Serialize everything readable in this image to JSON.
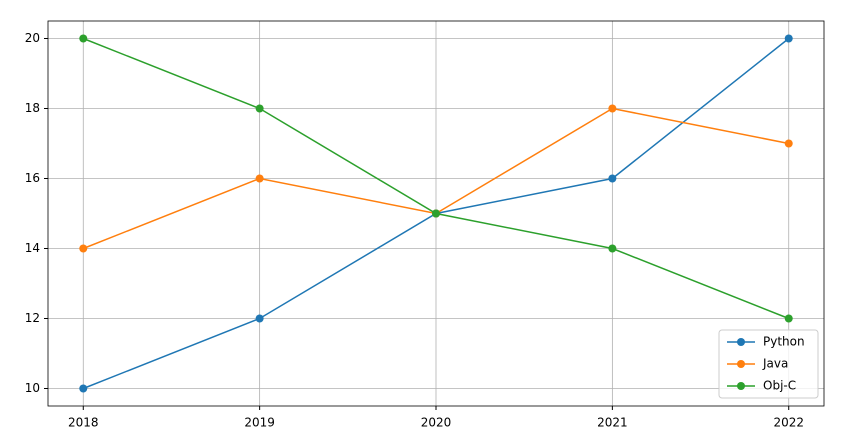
{
  "chart_data": {
    "type": "line",
    "x": [
      2018,
      2019,
      2020,
      2021,
      2022
    ],
    "series": [
      {
        "name": "Python",
        "color": "#1f77b4",
        "values": [
          10,
          12,
          15,
          16,
          20
        ]
      },
      {
        "name": "Java",
        "color": "#ff7f0e",
        "values": [
          14,
          16,
          15,
          18,
          17
        ]
      },
      {
        "name": "Obj-C",
        "color": "#2ca02c",
        "values": [
          20,
          18,
          15,
          14,
          12
        ]
      }
    ],
    "xlim": [
      2017.8,
      2022.2
    ],
    "xticks": [
      2018,
      2019,
      2020,
      2021,
      2022
    ],
    "ylim": [
      9.5,
      20.5
    ],
    "yticks": [
      10,
      12,
      14,
      16,
      18,
      20
    ],
    "grid": true,
    "legend": "lower right",
    "marker": "circle"
  }
}
